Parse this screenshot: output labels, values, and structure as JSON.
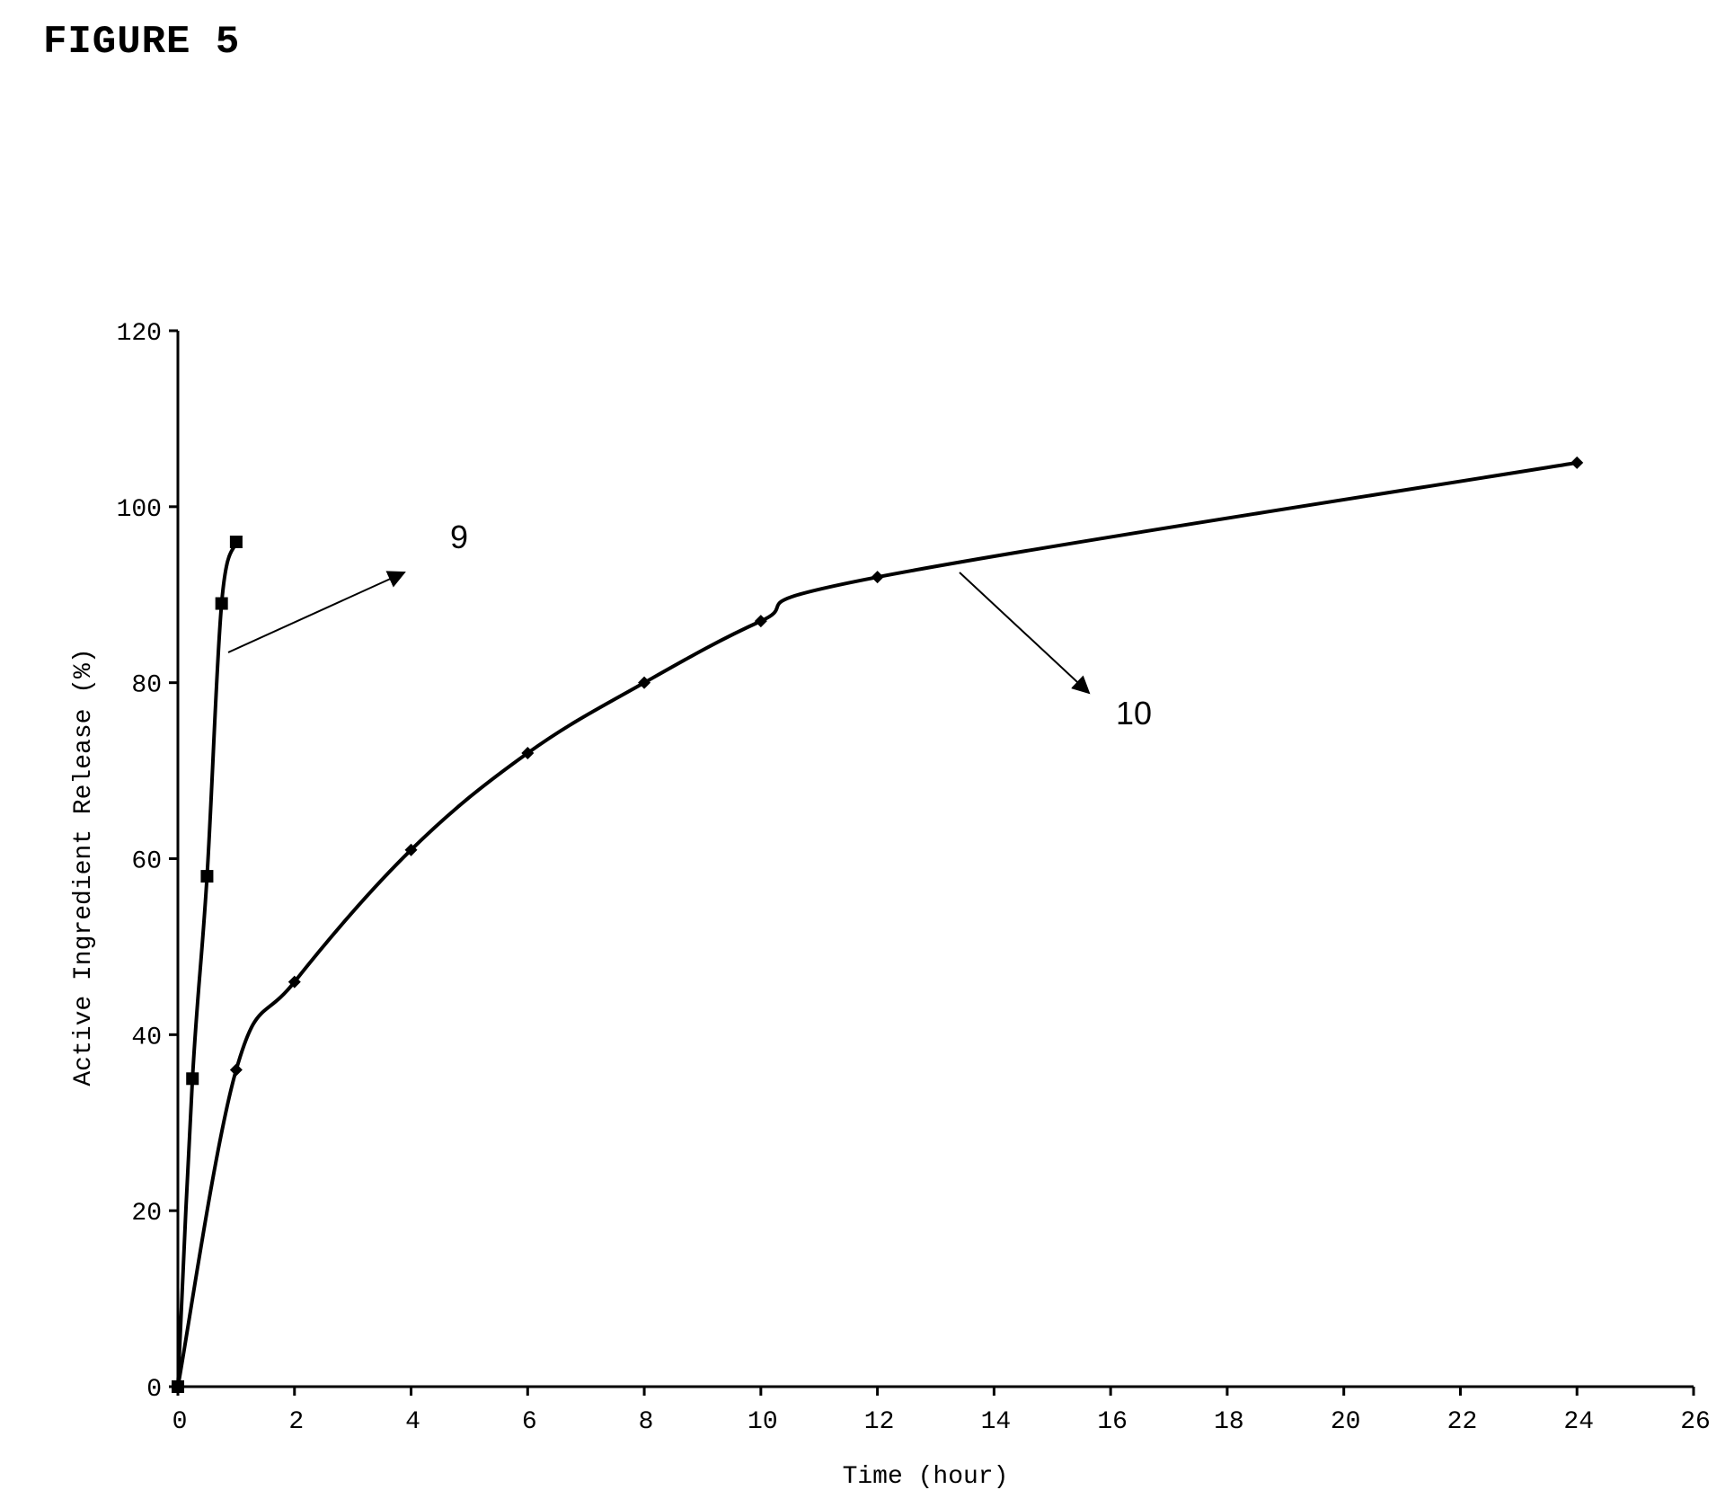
{
  "figure": {
    "title": "FIGURE 5"
  },
  "chart_data": {
    "type": "line",
    "title": "FIGURE 5",
    "xlabel": "Time (hour)",
    "ylabel": "Active Ingredient Release (%)",
    "xlim": [
      0,
      26
    ],
    "ylim": [
      0,
      120
    ],
    "xticks": [
      0,
      2,
      4,
      6,
      8,
      10,
      12,
      14,
      16,
      18,
      20,
      22,
      24,
      26
    ],
    "yticks": [
      0,
      20,
      40,
      60,
      80,
      100,
      120
    ],
    "grid": false,
    "series": [
      {
        "marker": "square",
        "x": [
          0,
          0.25,
          0.5,
          0.75,
          1
        ],
        "y": [
          0,
          35,
          58,
          89,
          96
        ],
        "color": "#000000"
      },
      {
        "marker": "diamond",
        "x": [
          0,
          1,
          2,
          4,
          6,
          8,
          10,
          12,
          24
        ],
        "y": [
          0,
          36,
          46,
          61,
          72,
          80,
          87,
          92,
          105
        ],
        "color": "#000000"
      }
    ],
    "annotations": [
      {
        "text": "9"
      },
      {
        "text": "10"
      }
    ]
  }
}
